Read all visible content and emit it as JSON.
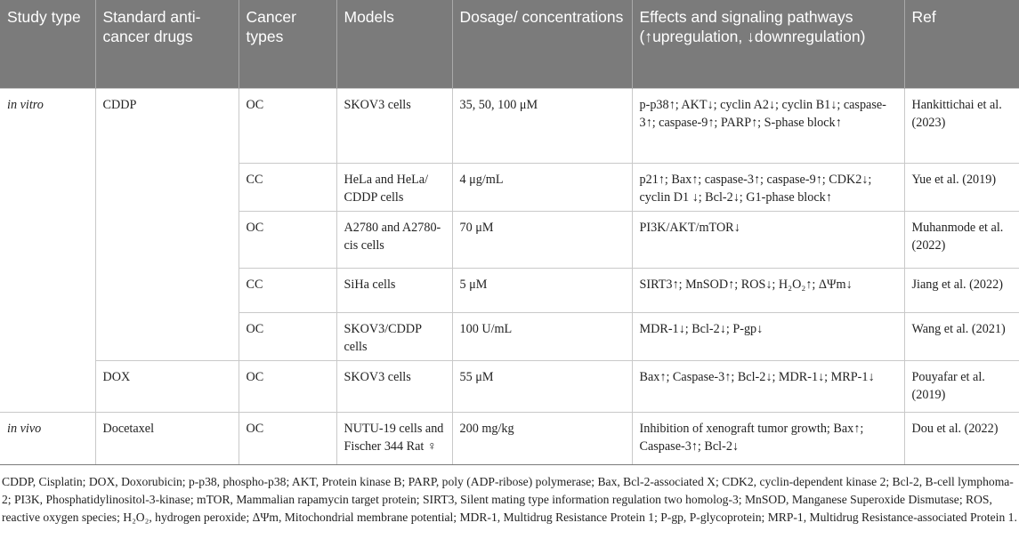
{
  "table": {
    "headers": [
      "Study type",
      "Standard anti-cancer drugs",
      "Cancer types",
      "Models",
      "Dosage/ concentrations",
      "Effects and signaling pathways (↑upregulation, ↓downregulation)",
      "Ref"
    ],
    "rows": [
      {
        "study_type": "in vitro",
        "drug": "CDDP",
        "cancer": "OC",
        "model": "SKOV3 cells",
        "dosage": "35, 50, 100 μM",
        "effects": "p-p38↑; AKT↓; cyclin A2↓; cyclin B1↓; caspase-3↑; caspase-9↑; PARP↑; S-phase block↑",
        "ref": "Hankittichai et al. (2023)"
      },
      {
        "cancer": "CC",
        "model": "HeLa and HeLa/ CDDP cells",
        "dosage": "4 μg/mL",
        "effects": "p21↑; Bax↑; caspase-3↑; caspase-9↑; CDK2↓; cyclin D1 ↓; Bcl-2↓; G1-phase block↑",
        "ref": "Yue et al. (2019)"
      },
      {
        "cancer": "OC",
        "model": "A2780 and A2780-cis cells",
        "dosage": "70 μM",
        "effects": "PI3K/AKT/mTOR↓",
        "ref": "Muhanmode et al. (2022)"
      },
      {
        "cancer": "CC",
        "model": "SiHa cells",
        "dosage": "5 μM",
        "effects": "SIRT3↑; MnSOD↑; ROS↓; H₂O₂↑; ΔΨm↓",
        "ref": "Jiang et al. (2022)"
      },
      {
        "cancer": "OC",
        "model": "SKOV3/CDDP cells",
        "dosage": "100 U/mL",
        "effects": "MDR-1↓; Bcl-2↓; P-gp↓",
        "ref": "Wang et al. (2021)"
      },
      {
        "drug": "DOX",
        "cancer": "OC",
        "model": "SKOV3 cells",
        "dosage": "55 μM",
        "effects": "Bax↑; Caspase-3↑; Bcl-2↓; MDR-1↓; MRP-1↓",
        "ref": "Pouyafar et al. (2019)"
      },
      {
        "study_type": "in vivo",
        "drug": "Docetaxel",
        "cancer": "OC",
        "model": "NUTU-19 cells and Fischer 344 Rat ♀",
        "dosage": "200 mg/kg",
        "effects": "Inhibition of xenograft tumor growth; Bax↑; Caspase-3↑; Bcl-2↓",
        "ref": "Dou et al. (2022)"
      }
    ]
  },
  "footnote": "CDDP, Cisplatin; DOX, Doxorubicin; p-p38, phospho-p38; AKT, Protein kinase B; PARP, poly (ADP-ribose) polymerase; Bax, Bcl-2-associated X; CDK2, cyclin-dependent kinase 2; Bcl-2, B-cell lymphoma-2; PI3K, Phosphatidylinositol-3-kinase; mTOR, Mammalian rapamycin target protein; SIRT3, Silent mating type information regulation two homolog-3; MnSOD, Manganese Superoxide Dismutase; ROS, reactive oxygen species; H₂O₂, hydrogen peroxide; ΔΨm, Mitochondrial membrane potential; MDR-1, Multidrug Resistance Protein 1; P-gp, P-glycoprotein; MRP-1, Multidrug Resistance-associated Protein 1."
}
